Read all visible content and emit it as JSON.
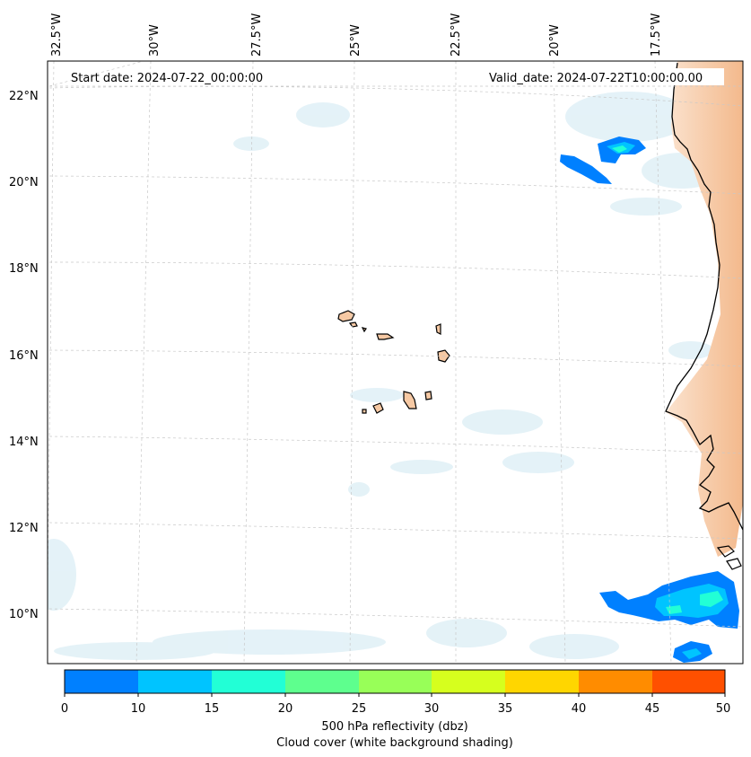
{
  "header": {
    "start_date": "Start date: 2024-07-22_00:00:00",
    "valid_date": "Valid_date: 2024-07-22T10:00:00.00"
  },
  "axes": {
    "longitude_labels": [
      "32.5°W",
      "30°W",
      "27.5°W",
      "25°W",
      "22.5°W",
      "20°W",
      "17.5°W"
    ],
    "latitude_labels": [
      "22°N",
      "20°N",
      "18°N",
      "16°N",
      "14°N",
      "12°N",
      "10°N"
    ]
  },
  "colorbar": {
    "ticks": [
      "0",
      "10",
      "15",
      "20",
      "25",
      "30",
      "35",
      "40",
      "45",
      "50"
    ],
    "colors": [
      "#0080ff",
      "#00c4ff",
      "#22ffd6",
      "#5eff8e",
      "#98ff58",
      "#d6ff1e",
      "#ffd600",
      "#ff8c00",
      "#ff5000"
    ],
    "label_line1": "500 hPa reflectivity (dbz)",
    "label_line2": "Cloud cover (white background shading)"
  },
  "colors": {
    "land": "#f6c9a4",
    "cloud": "#dbeef5",
    "coastline": "#000000",
    "gridline": "#c8c8c8"
  }
}
